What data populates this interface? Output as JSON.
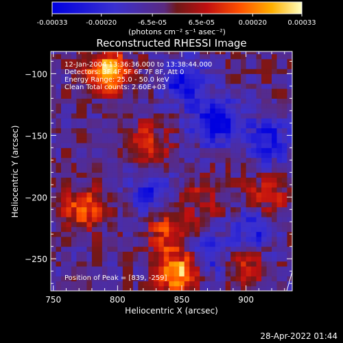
{
  "chart_data": {
    "type": "heatmap",
    "title": "Reconstructed RHESSI Image",
    "xlabel": "Heliocentric X (arcsec)",
    "ylabel": "Heliocentric Y (arcsec)",
    "xlim": [
      748,
      936
    ],
    "ylim": [
      -276,
      -82
    ],
    "x_ticks": [
      750,
      800,
      850,
      900
    ],
    "y_ticks": [
      -100,
      -150,
      -200,
      -250
    ],
    "colorbar": {
      "range": [
        -0.00033,
        0.00033
      ],
      "ticks": [
        "-0.00033",
        "-0.00020",
        "-6.5e-05",
        "6.5e-05",
        "0.00020",
        "0.00033"
      ],
      "label": "(photons cm⁻² s⁻¹ asec⁻²)"
    },
    "annotations": [
      "12-Jan-2004 13:36:36.000 to 13:38:44.000",
      "Detectors: 3F 4F 5F 6F 7F 8F, Att 0",
      "Energy Range: 25.0 - 50.0 keV",
      "Clean     Total counts: 2.60E+03"
    ],
    "peak_label": "Position of Peak = [839, -259]",
    "peak": [
      839,
      -259
    ],
    "bright_regions": [
      {
        "x": 790,
        "y": -100,
        "value": 0.00033
      },
      {
        "x": 845,
        "y": -262,
        "value": 0.00033
      },
      {
        "x": 773,
        "y": -210,
        "value": 0.00022
      },
      {
        "x": 838,
        "y": -230,
        "value": 0.0002
      },
      {
        "x": 822,
        "y": -160,
        "value": 0.00018
      },
      {
        "x": 912,
        "y": -205,
        "value": 0.00018
      },
      {
        "x": 895,
        "y": -260,
        "value": 0.00016
      },
      {
        "x": 865,
        "y": -200,
        "value": 0.00012
      }
    ],
    "dim_regions": [
      {
        "x": 875,
        "y": -140,
        "value": -0.0003
      },
      {
        "x": 850,
        "y": -110,
        "value": -0.00025
      },
      {
        "x": 905,
        "y": -225,
        "value": -0.00022
      },
      {
        "x": 915,
        "y": -155,
        "value": -0.00022
      },
      {
        "x": 825,
        "y": -195,
        "value": -0.00018
      },
      {
        "x": 870,
        "y": -250,
        "value": -0.0002
      }
    ]
  },
  "footer": {
    "timestamp": "28-Apr-2022 01:44"
  }
}
